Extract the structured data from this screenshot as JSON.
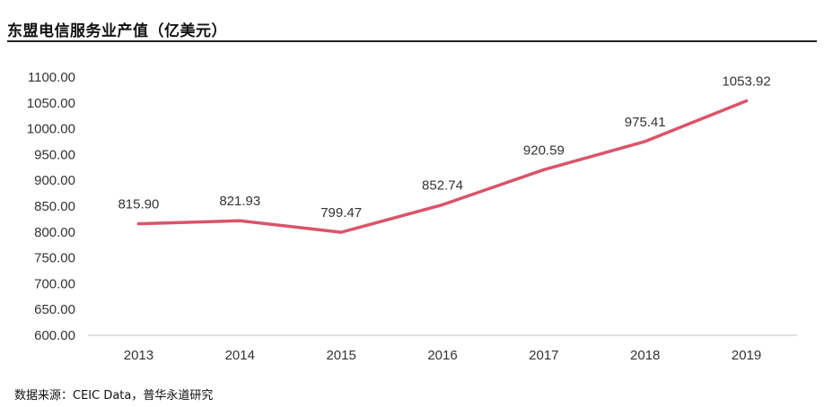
{
  "header": {
    "title": "东盟电信服务业产值（亿美元）"
  },
  "footer": {
    "source": "数据来源：CEIC Data，普华永道研究"
  },
  "colors": {
    "line": "#D9546A",
    "axis": "#BFBFBF",
    "text": "#333333"
  },
  "chart_data": {
    "type": "line",
    "title": "东盟电信服务业产值（亿美元）",
    "categories": [
      "2013",
      "2014",
      "2015",
      "2016",
      "2017",
      "2018",
      "2019"
    ],
    "series": [
      {
        "values": [
          815.9,
          821.93,
          799.47,
          852.74,
          920.59,
          975.41,
          1053.92
        ]
      }
    ],
    "data_labels": [
      "815.90",
      "821.93",
      "799.47",
      "852.74",
      "920.59",
      "975.41",
      "1053.92"
    ],
    "xlabel": "",
    "ylabel": "",
    "ylim": [
      600,
      1100
    ],
    "yticks": [
      600,
      650,
      700,
      750,
      800,
      850,
      900,
      950,
      1000,
      1050,
      1100
    ],
    "ytick_labels": [
      "600.00",
      "650.00",
      "700.00",
      "750.00",
      "800.00",
      "850.00",
      "900.00",
      "950.00",
      "1000.00",
      "1050.00",
      "1100.00"
    ],
    "grid": false,
    "legend": "none"
  }
}
